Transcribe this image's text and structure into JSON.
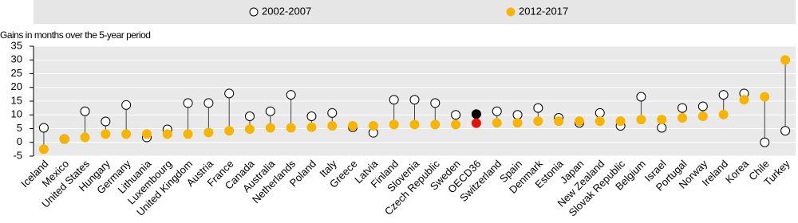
{
  "chart_data": {
    "type": "dot",
    "y_label": "Gains in months over the 5-year period",
    "categories": [
      "Iceland",
      "Mexico",
      "United States",
      "Hungary",
      "Germany",
      "Lithuania",
      "Luxembourg",
      "United Kingdom",
      "Austria",
      "France",
      "Canada",
      "Australia",
      "Netherlands",
      "Poland",
      "Italy",
      "Greece",
      "Latvia",
      "Finland",
      "Slovenia",
      "Czech Republic",
      "Sweden",
      "OECD36",
      "Switzerland",
      "Spain",
      "Denmark",
      "Estonia",
      "Japan",
      "New Zealand",
      "Slovak Republic",
      "Belgium",
      "Israel",
      "Portugal",
      "Norway",
      "Ireland",
      "Korea",
      "Chile",
      "Turkey"
    ],
    "series": [
      {
        "name": "2002-2007",
        "color": "#ffffff",
        "edgecolor": "#000000",
        "values": [
          5.3,
          1.2,
          11.3,
          7.6,
          13.6,
          1.8,
          4.7,
          14.3,
          14.3,
          17.8,
          9.5,
          11.3,
          17.3,
          9.5,
          10.7,
          5.5,
          3.5,
          15.5,
          15.5,
          14.3,
          10.0,
          10.3,
          11.3,
          10.0,
          12.5,
          8.9,
          7.1,
          10.7,
          6.0,
          16.6,
          5.3,
          12.5,
          13.1,
          17.3,
          17.8,
          0.0,
          4.2
        ]
      },
      {
        "name": "2012-2017",
        "color": "#f7b500",
        "edgecolor": "#f7b500",
        "values": [
          -2.5,
          1.2,
          1.8,
          3.0,
          3.0,
          3.0,
          3.0,
          3.0,
          3.6,
          4.2,
          4.8,
          5.3,
          5.3,
          5.5,
          6.0,
          6.0,
          6.0,
          6.5,
          6.5,
          6.5,
          6.5,
          7.0,
          7.1,
          7.1,
          7.7,
          7.7,
          7.7,
          7.7,
          7.7,
          8.3,
          8.3,
          8.9,
          9.5,
          10.1,
          15.5,
          16.6,
          30.0
        ]
      }
    ],
    "highlight_index": 21,
    "highlight_colors": [
      "#000000",
      "#e3120b"
    ],
    "ylim": [
      -5,
      35
    ],
    "yticks": [
      -5,
      0,
      5,
      10,
      15,
      20,
      25,
      30,
      35
    ],
    "grid": true
  }
}
